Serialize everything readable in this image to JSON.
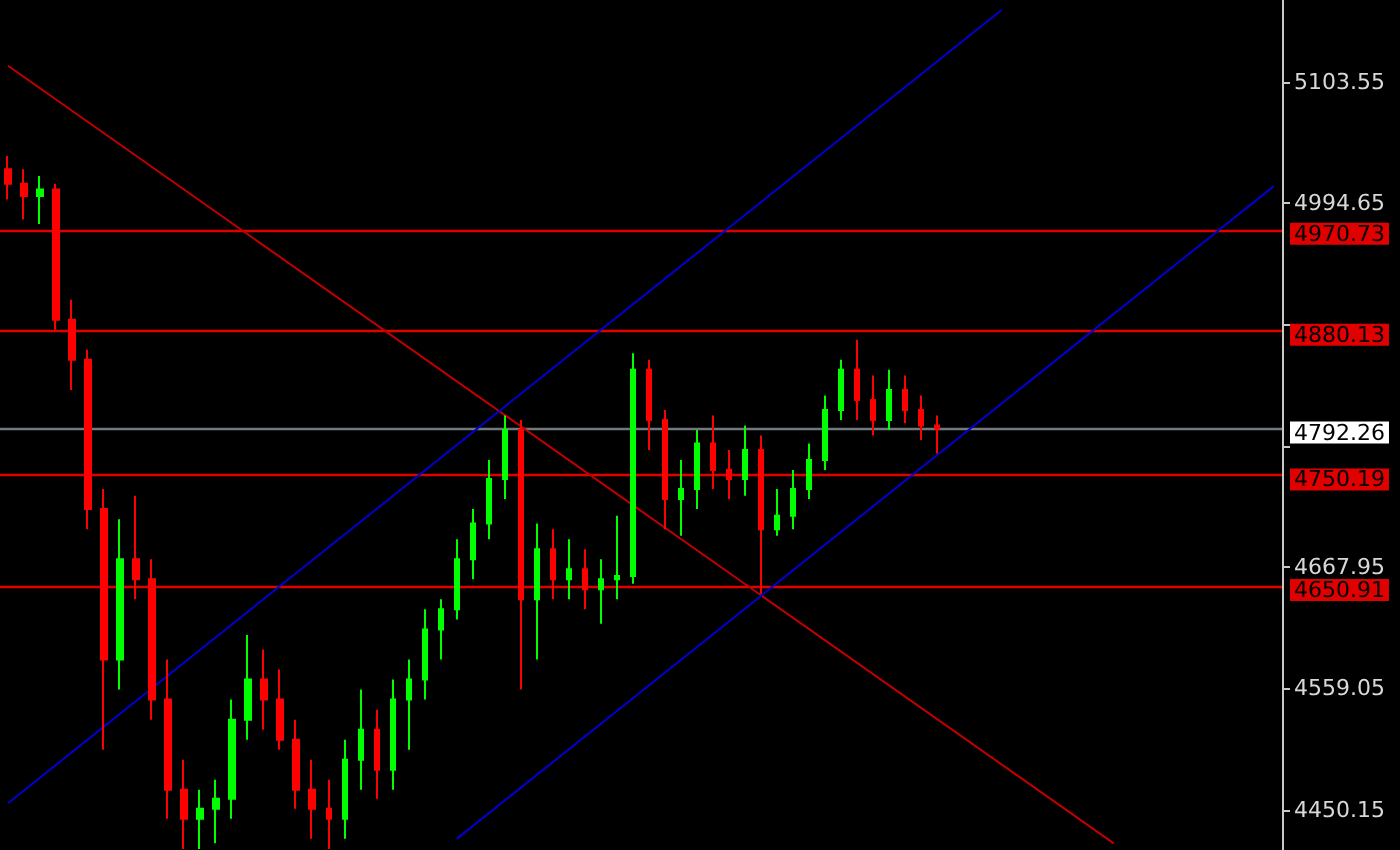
{
  "chart_data": {
    "type": "candlestick",
    "categories": [
      null,
      null,
      null,
      null,
      null,
      null,
      null,
      null,
      null,
      null,
      null,
      null,
      null,
      null,
      null,
      null,
      null,
      null,
      null,
      null,
      null,
      null,
      null,
      null,
      null,
      null,
      null,
      null,
      null,
      null,
      null,
      null,
      null,
      null,
      null,
      null,
      null,
      null,
      null,
      null,
      null,
      null,
      null,
      null,
      null,
      null,
      null,
      null,
      null,
      null,
      null,
      null,
      null,
      null,
      null,
      null,
      null,
      null,
      null,
      null,
      null,
      null,
      null,
      null,
      null,
      null,
      null,
      null,
      null,
      null,
      null,
      null,
      null,
      null,
      null,
      null,
      null,
      null,
      null,
      null
    ],
    "ohlc": [
      [
        5025,
        5037,
        4998,
        5012
      ],
      [
        5012,
        5025,
        4980,
        5001
      ],
      [
        5001,
        5019,
        4976,
        5007
      ],
      [
        5007,
        5012,
        4881,
        4890
      ],
      [
        4890,
        4908,
        4827,
        4854
      ],
      [
        4854,
        4863,
        4702,
        4720
      ],
      [
        4720,
        4738,
        4504,
        4585
      ],
      [
        4585,
        4711,
        4558,
        4675
      ],
      [
        4675,
        4732,
        4639,
        4657
      ],
      [
        4657,
        4675,
        4531,
        4549
      ],
      [
        4549,
        4585,
        4442,
        4468
      ],
      [
        4468,
        4495,
        4415,
        4442
      ],
      [
        4442,
        4468,
        4415,
        4451
      ],
      [
        4451,
        4477,
        4420,
        4460
      ],
      [
        4460,
        4549,
        4442,
        4531
      ],
      [
        4531,
        4607,
        4513,
        4567
      ],
      [
        4567,
        4594,
        4522,
        4549
      ],
      [
        4549,
        4576,
        4504,
        4513
      ],
      [
        4513,
        4531,
        4451,
        4468
      ],
      [
        4468,
        4495,
        4424,
        4451
      ],
      [
        4451,
        4477,
        4415,
        4442
      ],
      [
        4442,
        4513,
        4424,
        4495
      ],
      [
        4495,
        4558,
        4468,
        4522
      ],
      [
        4522,
        4540,
        4460,
        4486
      ],
      [
        4486,
        4567,
        4468,
        4549
      ],
      [
        4549,
        4585,
        4504,
        4567
      ],
      [
        4567,
        4630,
        4549,
        4612
      ],
      [
        4612,
        4639,
        4585,
        4630
      ],
      [
        4630,
        4693,
        4621,
        4675
      ],
      [
        4675,
        4720,
        4657,
        4707
      ],
      [
        4707,
        4764,
        4693,
        4747
      ],
      [
        4747,
        4804,
        4729,
        4791
      ],
      [
        4791,
        4800,
        4558,
        4639
      ],
      [
        4639,
        4707,
        4585,
        4684
      ],
      [
        4684,
        4702,
        4639,
        4657
      ],
      [
        4657,
        4693,
        4639,
        4666
      ],
      [
        4666,
        4684,
        4630,
        4648
      ],
      [
        4648,
        4675,
        4617,
        4657
      ],
      [
        4657,
        4714,
        4639,
        4660
      ],
      [
        4660,
        4860,
        4653,
        4845
      ],
      [
        4845,
        4854,
        4773,
        4800
      ],
      [
        4800,
        4809,
        4702,
        4729
      ],
      [
        4729,
        4764,
        4696,
        4738
      ],
      [
        4738,
        4791,
        4720,
        4779
      ],
      [
        4779,
        4804,
        4738,
        4755
      ],
      [
        4755,
        4773,
        4729,
        4747
      ],
      [
        4747,
        4795,
        4732,
        4773
      ],
      [
        4773,
        4786,
        4644,
        4702
      ],
      [
        4702,
        4738,
        4696,
        4714
      ],
      [
        4714,
        4755,
        4702,
        4738
      ],
      [
        4738,
        4779,
        4729,
        4764
      ],
      [
        4764,
        4822,
        4755,
        4809
      ],
      [
        4809,
        4854,
        4800,
        4845
      ],
      [
        4845,
        4872,
        4800,
        4818
      ],
      [
        4818,
        4840,
        4786,
        4800
      ],
      [
        4800,
        4845,
        4791,
        4827
      ],
      [
        4827,
        4840,
        4797,
        4809
      ],
      [
        4809,
        4822,
        4782,
        4795
      ],
      [
        4795,
        4804,
        4770,
        4792.26
      ],
      null,
      null,
      null,
      null,
      null,
      null,
      null,
      null,
      null,
      null,
      null,
      null,
      null,
      null,
      null,
      null,
      null,
      null,
      null,
      null,
      null
    ],
    "colors": [
      "#ff0000",
      "#ff0000",
      "#00ff00",
      "#ff0000",
      "#ff0000",
      "#ff0000",
      "#ff0000",
      "#00ff00",
      "#ff0000",
      "#ff0000",
      "#ff0000",
      "#ff0000",
      "#00ff00",
      "#00ff00",
      "#00ff00",
      "#00ff00",
      "#ff0000",
      "#ff0000",
      "#ff0000",
      "#ff0000",
      "#ff0000",
      "#00ff00",
      "#00ff00",
      "#ff0000",
      "#00ff00",
      "#00ff00",
      "#00ff00",
      "#00ff00",
      "#00ff00",
      "#00ff00",
      "#00ff00",
      "#00ff00",
      "#ff0000",
      "#00ff00",
      "#ff0000",
      "#00ff00",
      "#ff0000",
      "#00ff00",
      "#00ff00",
      "#00ff00",
      "#ff0000",
      "#ff0000",
      "#00ff00",
      "#00ff00",
      "#ff0000",
      "#ff0000",
      "#00ff00",
      "#ff0000",
      "#00ff00",
      "#00ff00",
      "#00ff00",
      "#00ff00",
      "#00ff00",
      "#ff0000",
      "#ff0000",
      "#00ff00",
      "#ff0000",
      "#ff0000",
      "#ff0000",
      null,
      null,
      null,
      null,
      null,
      null,
      null,
      null,
      null,
      null,
      null,
      null,
      null,
      null,
      null,
      null,
      null,
      null,
      null,
      null,
      null
    ],
    "series": [
      {
        "type": "line",
        "color": "#c00000",
        "values": [
          5118,
          null,
          null,
          null,
          null,
          null,
          null,
          null,
          null,
          null,
          null,
          null,
          null,
          null,
          null,
          null,
          null,
          null,
          null,
          null,
          null,
          null,
          null,
          null,
          null,
          null,
          null,
          null,
          null,
          null,
          null,
          null,
          null,
          null,
          null,
          null,
          null,
          null,
          null,
          null,
          null,
          null,
          null,
          null,
          null,
          null,
          null,
          null,
          null,
          null,
          null,
          null,
          null,
          null,
          null,
          null,
          null,
          null,
          null,
          null,
          null,
          null,
          null,
          null,
          null,
          null,
          null,
          null,
          null,
          4420,
          null,
          null,
          null,
          null,
          null,
          null,
          null,
          null,
          null,
          null
        ]
      },
      {
        "type": "line",
        "color": "#0000d0",
        "values": [
          4456,
          null,
          null,
          null,
          null,
          null,
          null,
          null,
          null,
          null,
          null,
          null,
          null,
          null,
          null,
          null,
          null,
          null,
          null,
          null,
          null,
          null,
          null,
          null,
          null,
          null,
          null,
          null,
          null,
          null,
          null,
          null,
          null,
          null,
          null,
          null,
          null,
          null,
          null,
          null,
          null,
          null,
          null,
          null,
          null,
          null,
          null,
          null,
          null,
          null,
          null,
          null,
          null,
          null,
          null,
          null,
          null,
          null,
          null,
          null,
          null,
          null,
          5168,
          null,
          null,
          null,
          null,
          null,
          null,
          null,
          null,
          null,
          null,
          null,
          null,
          null,
          null,
          null,
          null,
          null
        ]
      },
      {
        "type": "line",
        "color": "#0000d0",
        "values": [
          null,
          null,
          null,
          null,
          null,
          null,
          null,
          null,
          null,
          null,
          null,
          null,
          null,
          null,
          null,
          null,
          null,
          null,
          null,
          null,
          null,
          null,
          null,
          null,
          null,
          null,
          null,
          null,
          4424,
          null,
          null,
          null,
          null,
          null,
          null,
          null,
          null,
          null,
          null,
          null,
          null,
          null,
          null,
          null,
          null,
          null,
          null,
          null,
          null,
          null,
          null,
          null,
          null,
          null,
          null,
          null,
          null,
          null,
          null,
          null,
          null,
          null,
          null,
          null,
          null,
          null,
          null,
          null,
          null,
          null,
          null,
          null,
          null,
          null,
          null,
          null,
          null,
          null,
          null,
          5010
        ]
      }
    ],
    "ref_lines": [
      {
        "axis": "y",
        "value": 4970.73,
        "label": "4970.73",
        "color": "#e00000"
      },
      {
        "axis": "y",
        "value": 4880.13,
        "label": "4880.13",
        "color": "#e00000"
      },
      {
        "axis": "y",
        "value": 4792.26,
        "label": "4792.26",
        "color": "#707880"
      },
      {
        "axis": "y",
        "value": 4750.19,
        "label": "4750.19",
        "color": "#e00000"
      },
      {
        "axis": "y",
        "value": 4650.91,
        "label": "4650.91",
        "color": "#e00000"
      }
    ],
    "ylim": [
      4414,
      5177
    ],
    "yticks": [
      4450.15,
      4559.05,
      4667.95,
      {
        "value": 4776.85,
        "label": null
      },
      {
        "value": 4885.75,
        "label": null
      },
      4994.65,
      5103.55
    ],
    "tick_labels": "y",
    "grid": false
  }
}
